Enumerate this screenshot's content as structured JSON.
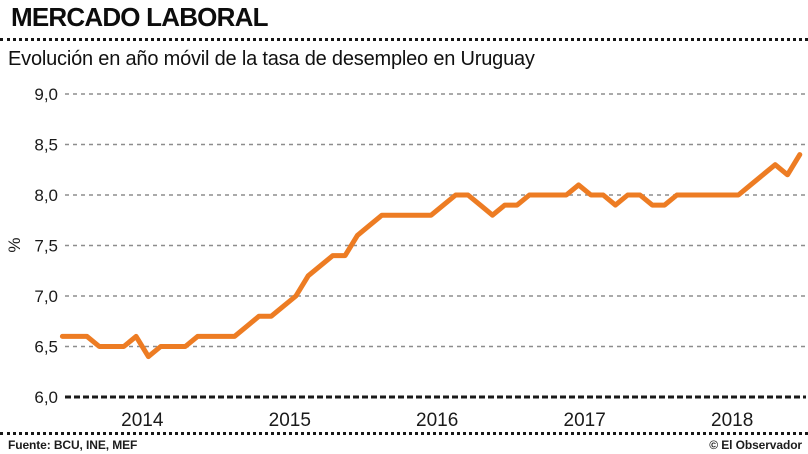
{
  "header": {
    "title": "MERCADO LABORAL",
    "subtitle": "Evolución en año móvil de la tasa de desempleo en Uruguay"
  },
  "footer": {
    "source": "Fuente: BCU, INE, MEF",
    "credit": "© El Observador"
  },
  "chart_data": {
    "type": "line",
    "title": "MERCADO LABORAL",
    "subtitle": "Evolución en año móvil de la tasa de desempleo en Uruguay",
    "xlabel": "",
    "ylabel": "%",
    "ylim": [
      6.0,
      9.0
    ],
    "y_ticks": [
      6.0,
      6.5,
      7.0,
      7.5,
      8.0,
      8.5,
      9.0
    ],
    "y_tick_labels": [
      "6,0",
      "6,5",
      "7,0",
      "7,5",
      "8,0",
      "8,5",
      "9,0"
    ],
    "x_year_labels": [
      "2014",
      "2015",
      "2016",
      "2017",
      "2018"
    ],
    "grid": "horizontal-dashed",
    "legend": "none",
    "line_color": "#ED7C23",
    "series": [
      {
        "name": "Tasa de desempleo en año móvil (%)",
        "months": [
          "2013-12",
          "2014-01",
          "2014-02",
          "2014-03",
          "2014-04",
          "2014-05",
          "2014-06",
          "2014-07",
          "2014-08",
          "2014-09",
          "2014-10",
          "2014-11",
          "2014-12",
          "2015-01",
          "2015-02",
          "2015-03",
          "2015-04",
          "2015-05",
          "2015-06",
          "2015-07",
          "2015-08",
          "2015-09",
          "2015-10",
          "2015-11",
          "2015-12",
          "2016-01",
          "2016-02",
          "2016-03",
          "2016-04",
          "2016-05",
          "2016-06",
          "2016-07",
          "2016-08",
          "2016-09",
          "2016-10",
          "2016-11",
          "2016-12",
          "2017-01",
          "2017-02",
          "2017-03",
          "2017-04",
          "2017-05",
          "2017-06",
          "2017-07",
          "2017-08",
          "2017-09",
          "2017-10",
          "2017-11",
          "2017-12",
          "2018-01",
          "2018-02",
          "2018-03",
          "2018-04",
          "2018-05",
          "2018-06",
          "2018-07",
          "2018-08",
          "2018-09",
          "2018-10",
          "2018-11",
          "2018-12"
        ],
        "values": [
          6.6,
          6.6,
          6.6,
          6.5,
          6.5,
          6.5,
          6.6,
          6.4,
          6.5,
          6.5,
          6.5,
          6.6,
          6.6,
          6.6,
          6.6,
          6.7,
          6.8,
          6.8,
          6.9,
          7.0,
          7.2,
          7.3,
          7.4,
          7.4,
          7.6,
          7.7,
          7.8,
          7.8,
          7.8,
          7.8,
          7.8,
          7.9,
          8.0,
          8.0,
          7.9,
          7.8,
          7.9,
          7.9,
          8.0,
          8.0,
          8.0,
          8.0,
          8.1,
          8.0,
          8.0,
          7.9,
          8.0,
          8.0,
          7.9,
          7.9,
          8.0,
          8.0,
          8.0,
          8.0,
          8.0,
          8.0,
          8.1,
          8.2,
          8.3,
          8.2,
          8.4
        ]
      }
    ]
  }
}
